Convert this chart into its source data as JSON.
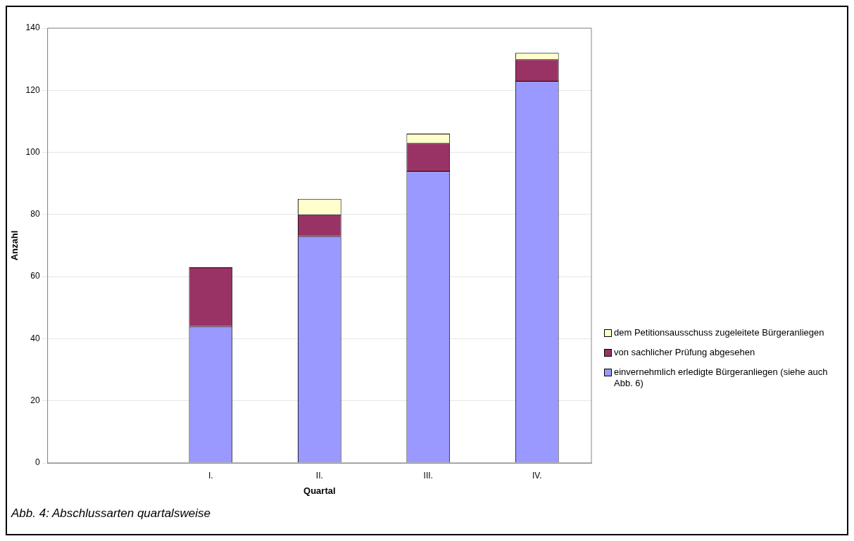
{
  "chart_data": {
    "type": "bar",
    "stacked": true,
    "xlabel": "Quartal",
    "ylabel": "Anzahl",
    "categories": [
      null,
      "I.",
      "II.",
      "III.",
      "IV."
    ],
    "series": [
      {
        "name": "einvernehmlich erledigte Bürgeranliegen (siehe auch Abb. 6)",
        "color": "#9999ff",
        "values": [
          null,
          44,
          73,
          94,
          123
        ]
      },
      {
        "name": "von sachlicher Prüfung abgesehen",
        "color": "#993366",
        "values": [
          null,
          19,
          7,
          9,
          7
        ]
      },
      {
        "name": "dem Petitionsausschuss zugeleitete Bürgeranliegen",
        "color": "#ffffcc",
        "values": [
          null,
          0,
          5,
          3,
          2
        ]
      }
    ],
    "ylim": [
      0,
      140
    ],
    "yticks": [
      0,
      20,
      40,
      60,
      80,
      100,
      120,
      140
    ],
    "grid": "y",
    "legend": "right",
    "annotations": [
      "Abb. 4: Abschlussarten quartalsweise"
    ]
  }
}
